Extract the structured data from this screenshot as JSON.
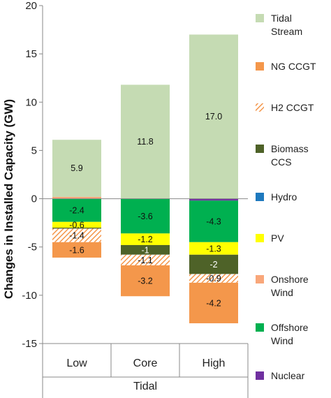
{
  "chart_data": {
    "type": "bar",
    "stacked": true,
    "title": "",
    "ylabel": "Changes in Installed Capacity (GW)",
    "xlabel": "Tidal",
    "ylim": [
      -15,
      20
    ],
    "yticks": [
      -15,
      -10,
      -5,
      0,
      5,
      10,
      15,
      20
    ],
    "grid": false,
    "legend_position": "right",
    "categories": [
      "Low",
      "Core",
      "High"
    ],
    "series": [
      {
        "name": "Tidal Stream",
        "color": "#c5dbb3",
        "values": [
          5.9,
          11.8,
          17.0
        ],
        "labels": [
          "5.9",
          "11.8",
          "17.0"
        ]
      },
      {
        "name": "NG CCGT",
        "color": "#f4974b",
        "values": [
          -1.6,
          -3.2,
          -4.2
        ],
        "labels": [
          "-1.6",
          "-3.2",
          "-4.2"
        ]
      },
      {
        "name": "H2 CCGT",
        "color": "#f4974b",
        "pattern": "hatch",
        "values": [
          -1.4,
          -1.1,
          -0.9
        ],
        "labels": [
          "-1.4",
          "-1.1",
          "-0.9"
        ]
      },
      {
        "name": "Biomass CCS",
        "color": "#4e6228",
        "values": [
          -0.1,
          -1.0,
          -2.0
        ],
        "labels": [
          "",
          "-1",
          "-2"
        ]
      },
      {
        "name": "Hydro",
        "color": "#1e79be",
        "values": [
          0,
          0,
          0
        ],
        "labels": [
          "",
          "",
          ""
        ]
      },
      {
        "name": "PV",
        "color": "#ffff00",
        "values": [
          -0.6,
          -1.2,
          -1.3
        ],
        "labels": [
          "-0.6",
          "-1.2",
          "-1.3"
        ]
      },
      {
        "name": "Onshore Wind",
        "color": "#f9a77a",
        "values": [
          0.2,
          0,
          0
        ],
        "labels": [
          "",
          "",
          ""
        ]
      },
      {
        "name": "Offshore Wind",
        "color": "#00b050",
        "values": [
          -2.4,
          -3.6,
          -4.3
        ],
        "labels": [
          "-2.4",
          "-3.6",
          "-4.3"
        ]
      },
      {
        "name": "Nuclear",
        "color": "#7030a0",
        "values": [
          0,
          0,
          -0.2
        ],
        "labels": [
          "",
          "",
          ""
        ]
      }
    ],
    "stack_order_negative": [
      "Nuclear",
      "Offshore Wind",
      "PV",
      "Biomass CCS",
      "H2 CCGT",
      "NG CCGT"
    ],
    "stack_order_positive": [
      "Onshore Wind",
      "Tidal Stream"
    ],
    "legend": [
      {
        "name": "Tidal Stream",
        "lines": [
          "Tidal",
          "Stream"
        ],
        "color": "#c5dbb3",
        "pattern": "solid"
      },
      {
        "name": "NG CCGT",
        "lines": [
          "NG CCGT"
        ],
        "color": "#f4974b",
        "pattern": "solid"
      },
      {
        "name": "H2 CCGT",
        "lines": [
          "H2 CCGT"
        ],
        "color": "#f4974b",
        "pattern": "hatch"
      },
      {
        "name": "Biomass CCS",
        "lines": [
          "Biomass",
          "CCS"
        ],
        "color": "#4e6228",
        "pattern": "solid"
      },
      {
        "name": "Hydro",
        "lines": [
          "Hydro"
        ],
        "color": "#1e79be",
        "pattern": "solid"
      },
      {
        "name": "PV",
        "lines": [
          "PV"
        ],
        "color": "#ffff00",
        "pattern": "solid"
      },
      {
        "name": "Onshore Wind",
        "lines": [
          "Onshore",
          "Wind"
        ],
        "color": "#f9a77a",
        "pattern": "solid"
      },
      {
        "name": "Offshore Wind",
        "lines": [
          "Offshore",
          "Wind"
        ],
        "color": "#00b050",
        "pattern": "solid"
      },
      {
        "name": "Nuclear",
        "lines": [
          "Nuclear"
        ],
        "color": "#7030a0",
        "pattern": "solid"
      }
    ]
  }
}
